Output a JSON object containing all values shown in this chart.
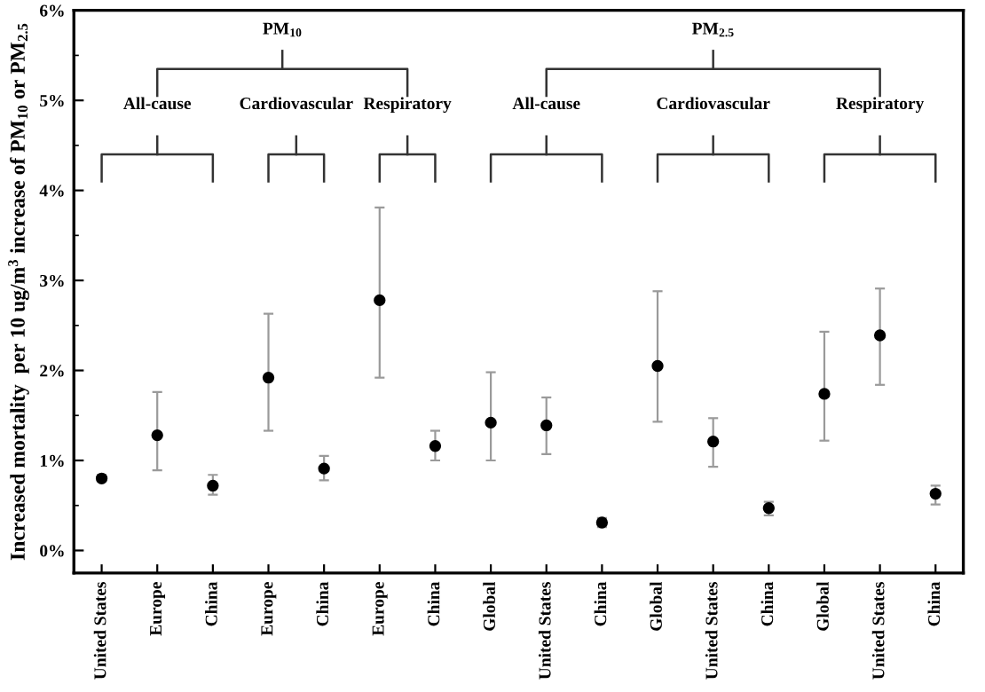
{
  "chart_data": {
    "type": "scatter",
    "ylabel": "Increased mortality  per 10 ug/m$^{3}$ increase of PM$_{10}$ or PM$_{2.5}$",
    "categories": [
      "United States",
      "Europe",
      "China",
      "Europe",
      "China",
      "Europe",
      "China",
      "Global",
      "United States",
      "China",
      "Global",
      "United States",
      "China",
      "Global",
      "United States",
      "China"
    ],
    "series": [
      {
        "color": "#000000",
        "values": [
          0.8,
          1.28,
          0.72,
          1.92,
          0.91,
          2.78,
          1.16,
          1.42,
          1.39,
          0.31,
          2.05,
          1.21,
          0.47,
          1.74,
          2.39,
          0.63
        ],
        "errors": [
          [
            0.77,
            0.84
          ],
          [
            0.89,
            1.76
          ],
          [
            0.62,
            0.84
          ],
          [
            1.33,
            2.63
          ],
          [
            0.78,
            1.05
          ],
          [
            1.92,
            3.81
          ],
          [
            1.0,
            1.33
          ],
          [
            1.0,
            1.98
          ],
          [
            1.07,
            1.7
          ],
          [
            0.26,
            0.36
          ],
          [
            1.43,
            2.88
          ],
          [
            0.93,
            1.47
          ],
          [
            0.39,
            0.54
          ],
          [
            1.22,
            2.43
          ],
          [
            1.84,
            2.91
          ],
          [
            0.51,
            0.72
          ]
        ]
      }
    ],
    "ylim": [
      -0.25,
      6
    ],
    "yticks": [
      {
        "value": 0,
        "label": "0%"
      },
      {
        "value": 1,
        "label": "1%"
      },
      {
        "value": 2,
        "label": "2%"
      },
      {
        "value": 3,
        "label": "3%"
      },
      {
        "value": 4,
        "label": "4%"
      },
      {
        "value": 5,
        "label": "5%"
      },
      {
        "value": 6,
        "label": "6%"
      }
    ],
    "annotations": [
      "PM$_{10}$",
      "PM$_{2.5}$",
      "All-cause",
      "Cardiovascular",
      "Respiratory",
      "All-cause",
      "Cardiovascular",
      "Respiratory"
    ],
    "marker": "circle",
    "grid": false,
    "legend": false
  }
}
